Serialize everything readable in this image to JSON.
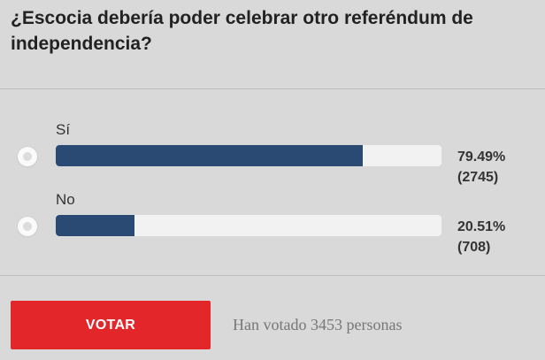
{
  "poll": {
    "question": "¿Escocia debería poder celebrar otro referéndum de independencia?",
    "options": [
      {
        "label": "Sí",
        "percent": "79.49%",
        "count": "(2745)",
        "share": 0.7949
      },
      {
        "label": "No",
        "percent": "20.51%",
        "count": "(708)",
        "share": 0.2051
      }
    ],
    "vote_button_label": "VOTAR",
    "votes_summary": "Han votado 3453 personas"
  },
  "colors": {
    "background": "#d9d9d9",
    "bar_fill": "#2b4a73",
    "bar_track": "#f2f2f2",
    "vote_button": "#e3262a"
  }
}
